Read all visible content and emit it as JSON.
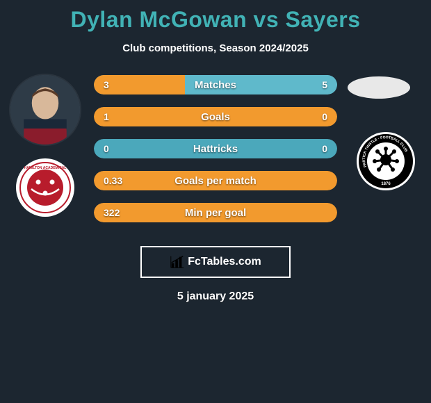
{
  "title": "Dylan McGowan vs Sayers",
  "subtitle": "Club competitions, Season 2024/2025",
  "date": "5 january 2025",
  "watermark": "FcTables.com",
  "colors": {
    "background": "#1c2630",
    "title": "#41b2b5",
    "bar_left_fill": "#f29a2e",
    "bar_right_fill": "#5fb9cb",
    "bar_base_primary": "#4ba8bb",
    "bar_base_secondary": "#f29a2e",
    "text": "#ffffff"
  },
  "player_left": {
    "name": "Dylan McGowan",
    "crest_name": "Hamilton Academical",
    "crest_colors": {
      "outer": "#ffffff",
      "inner": "#b81c2c",
      "accent": "#ffffff"
    }
  },
  "player_right": {
    "name": "Sayers",
    "crest_name": "Partick Thistle",
    "crest_colors": {
      "outer": "#ffffff",
      "inner": "#000000"
    }
  },
  "bars": [
    {
      "label": "Matches",
      "left": "3",
      "right": "5",
      "left_pct": 37.5,
      "right_pct": 62.5,
      "base": "right"
    },
    {
      "label": "Goals",
      "left": "1",
      "right": "0",
      "left_pct": 100,
      "right_pct": 0,
      "base": "left"
    },
    {
      "label": "Hattricks",
      "left": "0",
      "right": "0",
      "left_pct": 0,
      "right_pct": 0,
      "base": "right"
    },
    {
      "label": "Goals per match",
      "left": "0.33",
      "right": "",
      "left_pct": 100,
      "right_pct": 0,
      "base": "left"
    },
    {
      "label": "Min per goal",
      "left": "322",
      "right": "",
      "left_pct": 100,
      "right_pct": 0,
      "base": "left"
    }
  ],
  "bar_style": {
    "height": 28,
    "radius": 14,
    "gap": 18,
    "label_fontsize": 15,
    "value_fontsize": 14
  }
}
